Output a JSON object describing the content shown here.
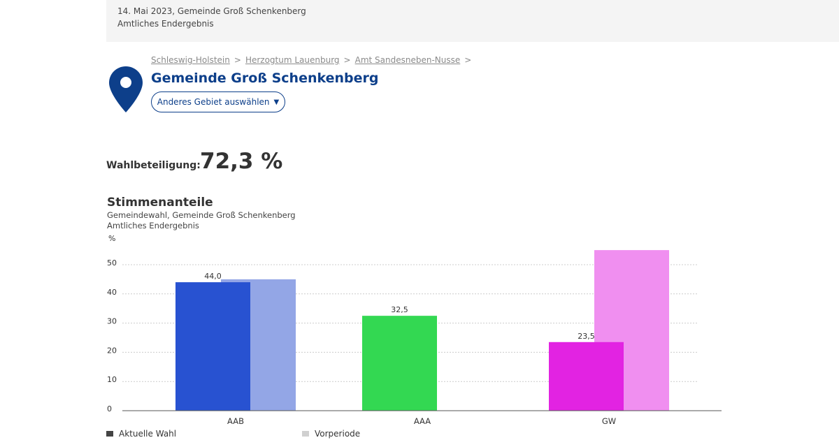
{
  "header": {
    "line1": "14. Mai 2023, Gemeinde Groß Schenkenberg",
    "line2": "Amtliches Endergebnis"
  },
  "breadcrumb": {
    "items": [
      "Schleswig-Holstein",
      "Herzogtum Lauenburg",
      "Amt Sandesneben-Nusse"
    ],
    "separator": ">"
  },
  "region": {
    "title": "Gemeinde Groß Schenkenberg",
    "select_button_label": "Anderes Gebiet auswählen",
    "select_button_icon": "caret-down-icon",
    "location_icon": "map-pin-icon"
  },
  "turnout": {
    "label": "Wahlbeteiligung:",
    "value": "72,3 %"
  },
  "chart_section": {
    "title": "Stimmenanteile",
    "subtitle1": "Gemeindewahl, Gemeinde Groß Schenkenberg",
    "subtitle2": "Amtliches Endergebnis"
  },
  "colors": {
    "accent": "#0d3f8a",
    "legend_current": "#444444",
    "legend_previous": "#d0d0d0"
  },
  "chart_data": {
    "type": "bar",
    "ylabel": "%",
    "ylim": [
      0,
      50
    ],
    "yticks": [
      0,
      10,
      20,
      30,
      40,
      50
    ],
    "grid": true,
    "categories": [
      "AAB",
      "AAA",
      "GW"
    ],
    "series": [
      {
        "name": "Aktuelle Wahl",
        "values": [
          44.0,
          32.5,
          23.5
        ],
        "labels": [
          "44,0",
          "32,5",
          "23,5"
        ],
        "colors": [
          "#2852d1",
          "#33d852",
          "#e223e2"
        ]
      },
      {
        "name": "Vorperiode",
        "values": [
          45.0,
          null,
          55.0
        ],
        "colors": [
          "#93a6e6",
          null,
          "#f08ff0"
        ]
      }
    ],
    "legend_position": "bottom-left"
  }
}
